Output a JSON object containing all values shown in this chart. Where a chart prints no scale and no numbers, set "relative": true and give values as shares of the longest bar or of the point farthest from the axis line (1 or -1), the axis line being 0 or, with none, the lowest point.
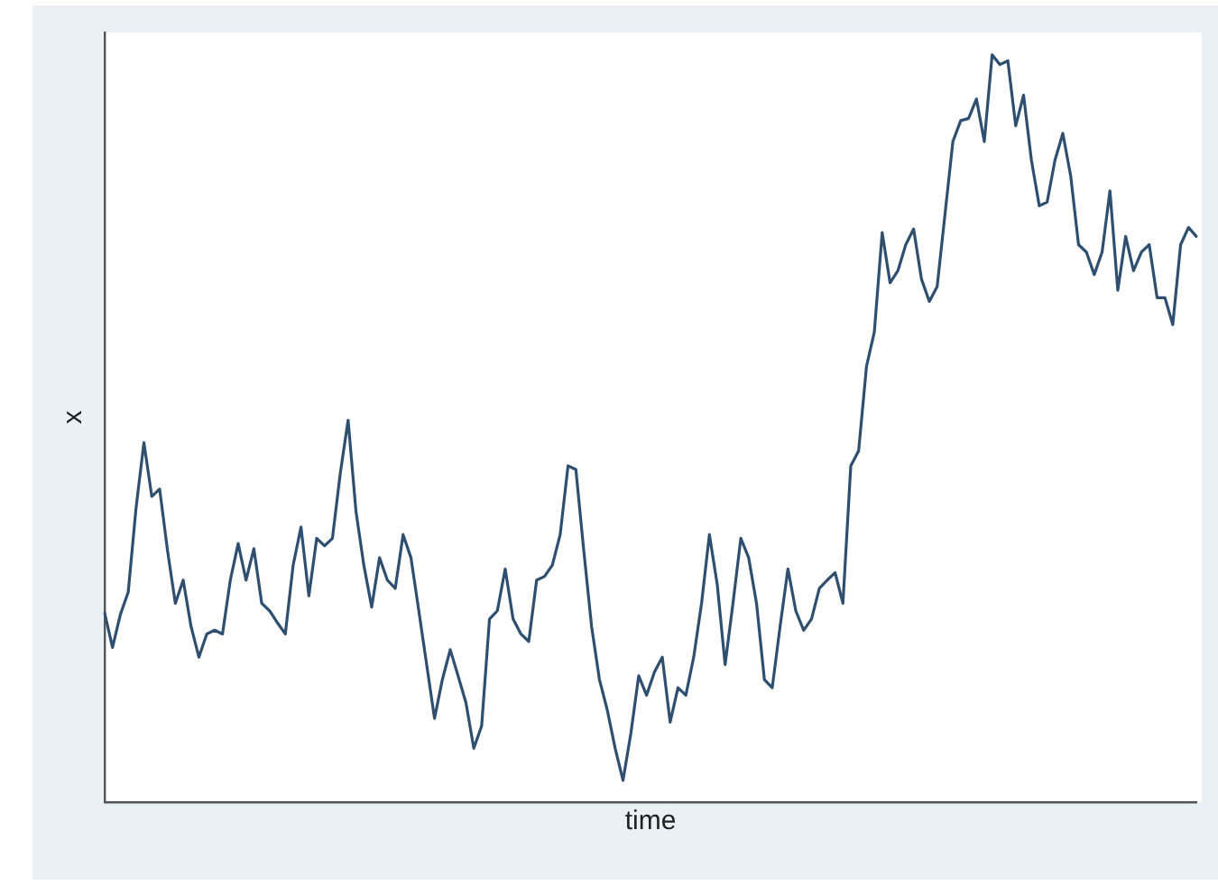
{
  "chart_data": {
    "type": "line",
    "xlabel": "time",
    "ylabel": "x",
    "relative": true,
    "grid": false,
    "legend": false,
    "marker": "none",
    "line_style": "solid",
    "categories": [
      null,
      null,
      null,
      null,
      null,
      null,
      null,
      null,
      null,
      null,
      null,
      null,
      null,
      null,
      null,
      null,
      null,
      null,
      null,
      null,
      null,
      null,
      null,
      null,
      null,
      null,
      null,
      null,
      null,
      null,
      null,
      null,
      null,
      null,
      null,
      null,
      null,
      null,
      null,
      null,
      null,
      null,
      null,
      null,
      null,
      null,
      null,
      null,
      null,
      null,
      null,
      null,
      null,
      null,
      null,
      null,
      null,
      null,
      null,
      null,
      null,
      null,
      null,
      null,
      null,
      null,
      null,
      null,
      null,
      null,
      null,
      null,
      null,
      null,
      null,
      null,
      null,
      null,
      null,
      null,
      null,
      null,
      null,
      null,
      null,
      null,
      null,
      null,
      null,
      null,
      null,
      null,
      null,
      null,
      null,
      null,
      null,
      null,
      null,
      null,
      null,
      null,
      null,
      null,
      null,
      null,
      null,
      null,
      null,
      null,
      null,
      null,
      null,
      null,
      null,
      null,
      null,
      null,
      null,
      null,
      null,
      null,
      null,
      null,
      null,
      null,
      null,
      null,
      null,
      null,
      null,
      null,
      null,
      null,
      null,
      null,
      null,
      null,
      null,
      null
    ],
    "series": [
      {
        "color": "#2e4f70",
        "values": [
          0.253,
          0.207,
          0.251,
          0.281,
          0.394,
          0.481,
          0.409,
          0.419,
          0.337,
          0.266,
          0.297,
          0.235,
          0.194,
          0.225,
          0.23,
          0.225,
          0.297,
          0.346,
          0.297,
          0.339,
          0.266,
          0.256,
          0.24,
          0.225,
          0.317,
          0.368,
          0.276,
          0.353,
          0.343,
          0.353,
          0.44,
          0.511,
          0.389,
          0.317,
          0.261,
          0.327,
          0.297,
          0.286,
          0.358,
          0.327,
          0.256,
          0.184,
          0.112,
          0.164,
          0.204,
          0.169,
          0.133,
          0.072,
          0.102,
          0.245,
          0.256,
          0.312,
          0.245,
          0.225,
          0.215,
          0.297,
          0.302,
          0.317,
          0.358,
          0.45,
          0.445,
          0.337,
          0.235,
          0.164,
          0.123,
          0.072,
          0.029,
          0.092,
          0.169,
          0.143,
          0.174,
          0.194,
          0.107,
          0.153,
          0.143,
          0.194,
          0.266,
          0.358,
          0.291,
          0.184,
          0.266,
          0.353,
          0.327,
          0.266,
          0.164,
          0.153,
          0.235,
          0.312,
          0.256,
          0.23,
          0.245,
          0.286,
          0.297,
          0.307,
          0.266,
          0.45,
          0.47,
          0.583,
          0.629,
          0.762,
          0.695,
          0.711,
          0.746,
          0.767,
          0.7,
          0.67,
          0.69,
          0.787,
          0.884,
          0.912,
          0.915,
          0.941,
          0.884,
          1,
          0.987,
          0.992,
          0.905,
          0.946,
          0.859,
          0.798,
          0.803,
          0.859,
          0.895,
          0.838,
          0.746,
          0.736,
          0.706,
          0.736,
          0.818,
          0.685,
          0.757,
          0.711,
          0.736,
          0.746,
          0.675,
          0.675,
          0.639,
          0.746,
          0.769,
          0.757
        ]
      }
    ]
  }
}
